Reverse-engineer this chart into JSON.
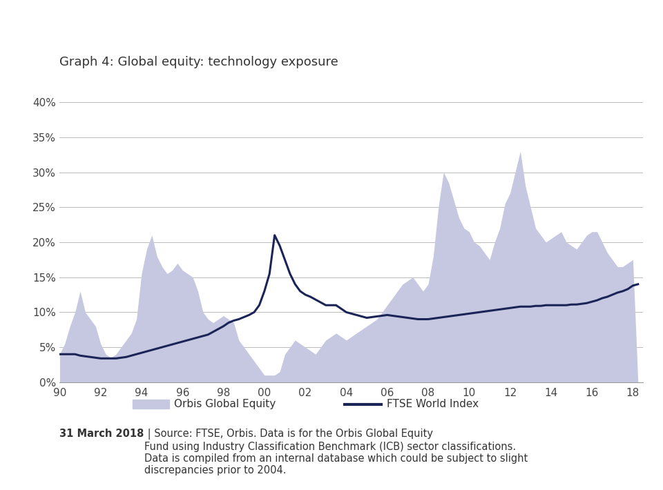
{
  "title": "Graph 4: Global equity: technology exposure",
  "background_color": "#ffffff",
  "ftse_color": "#1a2456",
  "orbis_fill_color": "#c5c8e0",
  "xlim": [
    1990,
    2018.5
  ],
  "ylim": [
    0,
    0.42
  ],
  "yticks": [
    0.0,
    0.05,
    0.1,
    0.15,
    0.2,
    0.25,
    0.3,
    0.35,
    0.4
  ],
  "ytick_labels": [
    "0%",
    "5%",
    "10%",
    "15%",
    "20%",
    "25%",
    "30%",
    "35%",
    "40%"
  ],
  "xticks": [
    1990,
    1992,
    1994,
    1996,
    1998,
    2000,
    2002,
    2004,
    2006,
    2008,
    2010,
    2012,
    2014,
    2016,
    2018
  ],
  "xtick_labels": [
    "90",
    "92",
    "94",
    "96",
    "98",
    "00",
    "02",
    "04",
    "06",
    "08",
    "10",
    "12",
    "14",
    "16",
    "18"
  ],
  "footer_bold": "31 March 2018",
  "footer_normal": " | Source: FTSE, Orbis. Data is for the Orbis Global Equity\nFund using Industry Classification Benchmark (ICB) sector classifications.\nData is compiled from an internal database which could be subject to slight\ndiscrepancies prior to 2004.",
  "legend_orbis_label": "Orbis Global Equity",
  "legend_ftse_label": "FTSE World Index",
  "orbis_x": [
    1990.0,
    1990.25,
    1990.5,
    1990.75,
    1991.0,
    1991.25,
    1991.5,
    1991.75,
    1992.0,
    1992.25,
    1992.5,
    1992.75,
    1993.0,
    1993.25,
    1993.5,
    1993.75,
    1994.0,
    1994.25,
    1994.5,
    1994.75,
    1995.0,
    1995.25,
    1995.5,
    1995.75,
    1996.0,
    1996.25,
    1996.5,
    1996.75,
    1997.0,
    1997.25,
    1997.5,
    1997.75,
    1998.0,
    1998.25,
    1998.5,
    1998.75,
    1999.0,
    1999.25,
    1999.5,
    1999.75,
    2000.0,
    2000.25,
    2000.5,
    2000.75,
    2001.0,
    2001.25,
    2001.5,
    2001.75,
    2002.0,
    2002.25,
    2002.5,
    2002.75,
    2003.0,
    2003.25,
    2003.5,
    2003.75,
    2004.0,
    2004.25,
    2004.5,
    2004.75,
    2005.0,
    2005.25,
    2005.5,
    2005.75,
    2006.0,
    2006.25,
    2006.5,
    2006.75,
    2007.0,
    2007.25,
    2007.5,
    2007.75,
    2008.0,
    2008.25,
    2008.5,
    2008.75,
    2009.0,
    2009.25,
    2009.5,
    2009.75,
    2010.0,
    2010.25,
    2010.5,
    2010.75,
    2011.0,
    2011.25,
    2011.5,
    2011.75,
    2012.0,
    2012.25,
    2012.5,
    2012.75,
    2013.0,
    2013.25,
    2013.5,
    2013.75,
    2014.0,
    2014.25,
    2014.5,
    2014.75,
    2015.0,
    2015.25,
    2015.5,
    2015.75,
    2016.0,
    2016.25,
    2016.5,
    2016.75,
    2017.0,
    2017.25,
    2017.5,
    2017.75,
    2018.0,
    2018.25
  ],
  "orbis_y": [
    0.04,
    0.055,
    0.08,
    0.1,
    0.13,
    0.1,
    0.09,
    0.08,
    0.055,
    0.04,
    0.035,
    0.04,
    0.05,
    0.06,
    0.07,
    0.09,
    0.155,
    0.19,
    0.21,
    0.18,
    0.165,
    0.155,
    0.16,
    0.17,
    0.16,
    0.155,
    0.15,
    0.13,
    0.1,
    0.09,
    0.085,
    0.09,
    0.095,
    0.09,
    0.085,
    0.06,
    0.05,
    0.04,
    0.03,
    0.02,
    0.01,
    0.01,
    0.01,
    0.015,
    0.04,
    0.05,
    0.06,
    0.055,
    0.05,
    0.045,
    0.04,
    0.05,
    0.06,
    0.065,
    0.07,
    0.065,
    0.06,
    0.065,
    0.07,
    0.075,
    0.08,
    0.085,
    0.09,
    0.1,
    0.11,
    0.12,
    0.13,
    0.14,
    0.145,
    0.15,
    0.14,
    0.13,
    0.14,
    0.18,
    0.25,
    0.3,
    0.285,
    0.26,
    0.235,
    0.22,
    0.215,
    0.2,
    0.195,
    0.185,
    0.175,
    0.2,
    0.22,
    0.255,
    0.27,
    0.3,
    0.33,
    0.28,
    0.25,
    0.22,
    0.21,
    0.2,
    0.205,
    0.21,
    0.215,
    0.2,
    0.195,
    0.19,
    0.2,
    0.21,
    0.215,
    0.215,
    0.2,
    0.185,
    0.175,
    0.165,
    0.165,
    0.17,
    0.175,
    0.0
  ],
  "ftse_x": [
    1990.0,
    1990.25,
    1990.5,
    1990.75,
    1991.0,
    1991.25,
    1991.5,
    1991.75,
    1992.0,
    1992.25,
    1992.5,
    1992.75,
    1993.0,
    1993.25,
    1993.5,
    1993.75,
    1994.0,
    1994.25,
    1994.5,
    1994.75,
    1995.0,
    1995.25,
    1995.5,
    1995.75,
    1996.0,
    1996.25,
    1996.5,
    1996.75,
    1997.0,
    1997.25,
    1997.5,
    1997.75,
    1998.0,
    1998.25,
    1998.5,
    1998.75,
    1999.0,
    1999.25,
    1999.5,
    1999.75,
    2000.0,
    2000.25,
    2000.5,
    2000.75,
    2001.0,
    2001.25,
    2001.5,
    2001.75,
    2002.0,
    2002.25,
    2002.5,
    2002.75,
    2003.0,
    2003.25,
    2003.5,
    2003.75,
    2004.0,
    2004.25,
    2004.5,
    2004.75,
    2005.0,
    2005.25,
    2005.5,
    2005.75,
    2006.0,
    2006.25,
    2006.5,
    2006.75,
    2007.0,
    2007.25,
    2007.5,
    2007.75,
    2008.0,
    2008.25,
    2008.5,
    2008.75,
    2009.0,
    2009.25,
    2009.5,
    2009.75,
    2010.0,
    2010.25,
    2010.5,
    2010.75,
    2011.0,
    2011.25,
    2011.5,
    2011.75,
    2012.0,
    2012.25,
    2012.5,
    2012.75,
    2013.0,
    2013.25,
    2013.5,
    2013.75,
    2014.0,
    2014.25,
    2014.5,
    2014.75,
    2015.0,
    2015.25,
    2015.5,
    2015.75,
    2016.0,
    2016.25,
    2016.5,
    2016.75,
    2017.0,
    2017.25,
    2017.5,
    2017.75,
    2018.0,
    2018.25
  ],
  "ftse_y": [
    0.04,
    0.04,
    0.04,
    0.04,
    0.038,
    0.037,
    0.036,
    0.035,
    0.034,
    0.034,
    0.034,
    0.034,
    0.035,
    0.036,
    0.038,
    0.04,
    0.042,
    0.044,
    0.046,
    0.048,
    0.05,
    0.052,
    0.054,
    0.056,
    0.058,
    0.06,
    0.062,
    0.064,
    0.066,
    0.068,
    0.072,
    0.076,
    0.08,
    0.085,
    0.088,
    0.09,
    0.093,
    0.096,
    0.1,
    0.11,
    0.13,
    0.155,
    0.21,
    0.195,
    0.175,
    0.155,
    0.14,
    0.13,
    0.125,
    0.122,
    0.118,
    0.114,
    0.11,
    0.11,
    0.11,
    0.105,
    0.1,
    0.098,
    0.096,
    0.094,
    0.092,
    0.093,
    0.094,
    0.095,
    0.096,
    0.095,
    0.094,
    0.093,
    0.092,
    0.091,
    0.09,
    0.09,
    0.09,
    0.091,
    0.092,
    0.093,
    0.094,
    0.095,
    0.096,
    0.097,
    0.098,
    0.099,
    0.1,
    0.101,
    0.102,
    0.103,
    0.104,
    0.105,
    0.106,
    0.107,
    0.108,
    0.108,
    0.108,
    0.109,
    0.109,
    0.11,
    0.11,
    0.11,
    0.11,
    0.11,
    0.111,
    0.111,
    0.112,
    0.113,
    0.115,
    0.117,
    0.12,
    0.122,
    0.125,
    0.128,
    0.13,
    0.133,
    0.138,
    0.14
  ]
}
